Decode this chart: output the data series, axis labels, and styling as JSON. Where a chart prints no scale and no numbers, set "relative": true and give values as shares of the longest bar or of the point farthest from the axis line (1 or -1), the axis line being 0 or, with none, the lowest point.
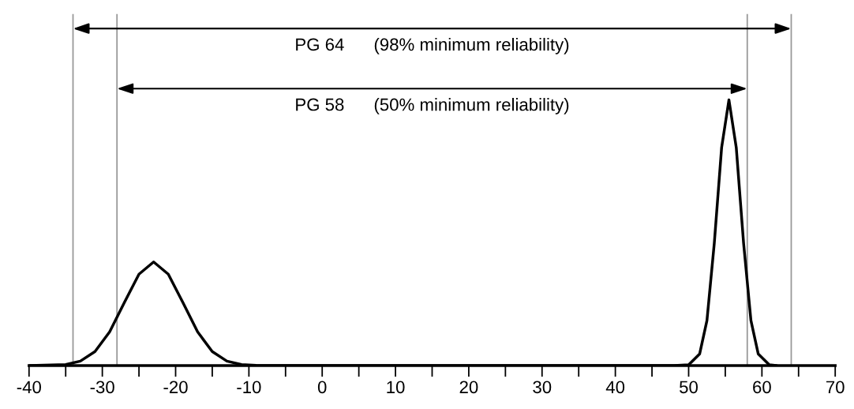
{
  "chart_data": {
    "type": "line",
    "relative": true,
    "x": [
      -40,
      -35,
      -33,
      -31,
      -29,
      -27,
      -25,
      -23,
      -21,
      -19,
      -17,
      -15,
      -13,
      -11,
      -9,
      -5,
      0,
      10,
      20,
      30,
      40,
      48,
      50,
      51.5,
      52.5,
      53.5,
      54.5,
      55.5,
      56.5,
      57.5,
      58.5,
      59.5,
      61,
      62
    ],
    "series": [
      {
        "color": "#000000",
        "values": [
          0,
          0.004,
          0.017,
          0.053,
          0.127,
          0.237,
          0.344,
          0.39,
          0.344,
          0.237,
          0.127,
          0.053,
          0.017,
          0.004,
          0.001,
          0,
          0,
          0,
          0,
          0,
          0,
          0,
          0.003,
          0.044,
          0.17,
          0.46,
          0.82,
          1,
          0.82,
          0.46,
          0.17,
          0.044,
          0.003,
          0
        ]
      }
    ],
    "xlim": [
      -40,
      70
    ],
    "xticks": [
      -40,
      {
        "value": -35,
        "label": null
      },
      -30,
      {
        "value": -25,
        "label": null
      },
      -20,
      {
        "value": -15,
        "label": null
      },
      -10,
      {
        "value": -5,
        "label": null
      },
      0,
      {
        "value": 5,
        "label": null
      },
      10,
      {
        "value": 15,
        "label": null
      },
      20,
      {
        "value": 25,
        "label": null
      },
      30,
      {
        "value": 35,
        "label": null
      },
      40,
      {
        "value": 45,
        "label": null
      },
      50,
      {
        "value": 55,
        "label": null
      },
      60,
      {
        "value": 65,
        "label": null
      },
      70
    ],
    "ref_lines": [
      {
        "axis": "x",
        "value": -34,
        "color": "#999999"
      },
      {
        "axis": "x",
        "value": -28,
        "color": "#999999"
      },
      {
        "axis": "x",
        "value": 58,
        "color": "#999999"
      },
      {
        "axis": "x",
        "value": 64,
        "color": "#999999"
      }
    ],
    "annotations": [
      "PG 64      (98% minimum reliability)",
      "PG 58      (50% minimum reliability)"
    ],
    "grid": false,
    "legend": false,
    "marker": "none",
    "line_style": "solid",
    "tick_labels": "x"
  }
}
